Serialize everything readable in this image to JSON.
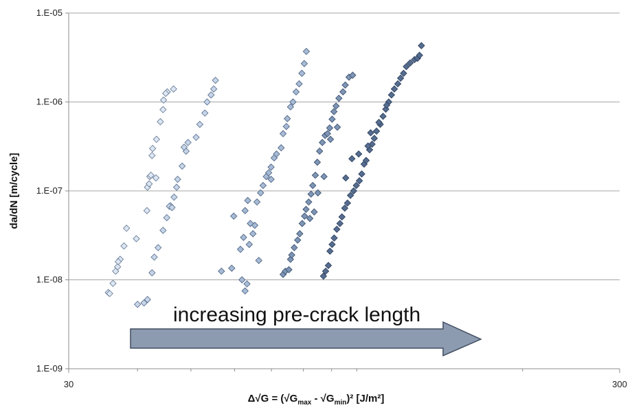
{
  "chart_data": {
    "type": "scatter",
    "xscale": "log",
    "yscale": "log",
    "xlim": [
      30,
      300
    ],
    "ylim": [
      1e-09,
      1e-05
    ],
    "x_tick_labels": [
      "30",
      "300"
    ],
    "y_tick_labels": [
      "1.E-09",
      "1.E-08",
      "1.E-07",
      "1.E-06",
      "1.E-05"
    ],
    "ylabel": "da/dN [m/cycle]",
    "xlabel_parts": [
      "Δ√G = (√G",
      "max",
      " - √G",
      "min",
      ")² [J/m²]"
    ],
    "grid": "horizontal",
    "annotation": "increasing pre-crack length",
    "series": [
      {
        "color": "#dde6f3",
        "stroke": "#6b7f99",
        "marker": "diamond",
        "points": [
          [
            35.4,
            7.2e-09
          ],
          [
            35.6,
            7e-09
          ],
          [
            36.1,
            9.1e-09
          ],
          [
            36.5,
            1.25e-08
          ],
          [
            36.8,
            1.4e-08
          ],
          [
            37.2,
            1.7e-08
          ],
          [
            37.8,
            2.4e-08
          ],
          [
            38.2,
            3.8e-08
          ],
          [
            41.7,
            1.1e-07
          ],
          [
            42.1,
            1.45e-07
          ],
          [
            42.3,
            1.5e-07
          ],
          [
            42.5,
            2.5e-07
          ],
          [
            43.3,
            3.8e-07
          ],
          [
            44.0,
            6e-07
          ],
          [
            44.5,
            8.2e-07
          ],
          [
            45.3,
            1.3e-06
          ],
          [
            46.5,
            1.4e-06
          ],
          [
            41.6,
            6e-08
          ],
          [
            42.0,
            1.2e-07
          ],
          [
            43.2,
            1.4e-07
          ],
          [
            39.8,
            2.9e-08
          ],
          [
            36.9,
            1.6e-08
          ],
          [
            42.6,
            3e-07
          ],
          [
            44.6,
            1.05e-06
          ],
          [
            45.0,
            1.25e-06
          ]
        ]
      },
      {
        "color": "#c8d5e8",
        "stroke": "#5f7593",
        "marker": "diamond",
        "points": [
          [
            40.0,
            5.3e-09
          ],
          [
            41.1,
            5.5e-09
          ],
          [
            41.7,
            6e-09
          ],
          [
            42.5,
            1.2e-08
          ],
          [
            42.9,
            1.8e-08
          ],
          [
            43.6,
            2.3e-08
          ],
          [
            44.5,
            3.6e-08
          ],
          [
            45.2,
            5e-08
          ],
          [
            45.9,
            6.8e-08
          ],
          [
            46.6,
            8.5e-08
          ],
          [
            47.3,
            1.35e-07
          ],
          [
            48.2,
            1.9e-07
          ],
          [
            49.0,
            2.8e-07
          ],
          [
            49.4,
            3.5e-07
          ],
          [
            51.1,
            4e-07
          ],
          [
            51.9,
            5.6e-07
          ],
          [
            53.0,
            7.5e-07
          ],
          [
            53.5,
            1e-06
          ],
          [
            54.4,
            1.2e-06
          ],
          [
            55.0,
            1.4e-06
          ],
          [
            55.4,
            1.75e-06
          ],
          [
            45.7,
            6.7e-08
          ],
          [
            47.1,
            1.1e-07
          ],
          [
            46.2,
            6.5e-08
          ],
          [
            48.6,
            3.1e-07
          ]
        ]
      },
      {
        "color": "#a8bbd6",
        "stroke": "#4f6685",
        "marker": "diamond",
        "points": [
          [
            56.8,
            1.25e-08
          ],
          [
            59.3,
            1.35e-08
          ],
          [
            61.9,
            1e-08
          ],
          [
            62.7,
            7.5e-09
          ],
          [
            63.2,
            9e-09
          ],
          [
            61.5,
            2.2e-08
          ],
          [
            62.3,
            3e-08
          ],
          [
            63.8,
            2.5e-08
          ],
          [
            64.8,
            3.3e-08
          ],
          [
            65.3,
            4.1e-08
          ],
          [
            62.7,
            6e-08
          ],
          [
            63.4,
            7.8e-08
          ],
          [
            65.9,
            7.5e-08
          ],
          [
            66.9,
            9.5e-08
          ],
          [
            67.6,
            1.15e-07
          ],
          [
            68.5,
            1.45e-07
          ],
          [
            69.2,
            1.6e-07
          ],
          [
            69.9,
            1.85e-07
          ],
          [
            70.8,
            2.35e-07
          ],
          [
            71.5,
            2.6e-07
          ],
          [
            72.9,
            3.05e-07
          ],
          [
            73.5,
            4.4e-07
          ],
          [
            74.5,
            5.3e-07
          ],
          [
            74.8,
            6.5e-07
          ],
          [
            75.8,
            8.8e-07
          ],
          [
            76.6,
            1e-06
          ],
          [
            77.6,
            1.3e-06
          ],
          [
            78.6,
            1.6e-06
          ],
          [
            79.5,
            2.1e-06
          ],
          [
            80.3,
            2.7e-06
          ],
          [
            81.0,
            3.7e-06
          ],
          [
            59.8,
            5.2e-08
          ],
          [
            64.1,
            4.3e-08
          ],
          [
            66.4,
            1.65e-08
          ],
          [
            69.9,
            1.35e-07
          ]
        ]
      },
      {
        "color": "#7f95b4",
        "stroke": "#3d5373",
        "marker": "diamond",
        "points": [
          [
            73.5,
            1.15e-08
          ],
          [
            74.2,
            1.25e-08
          ],
          [
            75.3,
            1.3e-08
          ],
          [
            75.8,
            1.7e-08
          ],
          [
            76.2,
            1.9e-08
          ],
          [
            77.0,
            2.3e-08
          ],
          [
            78.1,
            2.8e-08
          ],
          [
            78.8,
            3.3e-08
          ],
          [
            79.6,
            4.3e-08
          ],
          [
            80.4,
            5.2e-08
          ],
          [
            80.9,
            6.2e-08
          ],
          [
            81.8,
            7.5e-08
          ],
          [
            82.6,
            9.2e-08
          ],
          [
            83.2,
            1.15e-07
          ],
          [
            84.1,
            1.5e-07
          ],
          [
            84.8,
            2.1e-07
          ],
          [
            85.6,
            2.8e-07
          ],
          [
            86.6,
            3.5e-07
          ],
          [
            87.6,
            4.2e-07
          ],
          [
            88.5,
            4.4e-07
          ],
          [
            89.3,
            5.1e-07
          ],
          [
            90.2,
            6.4e-07
          ],
          [
            90.9,
            7.8e-07
          ],
          [
            91.7,
            9e-07
          ],
          [
            92.8,
            1.1e-06
          ],
          [
            94.4,
            1.3e-06
          ],
          [
            95.3,
            1.55e-06
          ],
          [
            96.8,
            1.9e-06
          ],
          [
            98.3,
            2e-06
          ],
          [
            85.0,
            9.5e-08
          ],
          [
            83.7,
            5.8e-08
          ],
          [
            82.2,
            4.9e-08
          ],
          [
            87.2,
            1.45e-07
          ],
          [
            89.6,
            3.8e-07
          ],
          [
            92.2,
            5.2e-07
          ]
        ]
      },
      {
        "color": "#566d8f",
        "stroke": "#2e4260",
        "marker": "diamond",
        "points": [
          [
            87.0,
            1.1e-08
          ],
          [
            87.8,
            1.25e-08
          ],
          [
            88.8,
            1.45e-08
          ],
          [
            89.4,
            2.1e-08
          ],
          [
            90.2,
            2.5e-08
          ],
          [
            91.0,
            2.95e-08
          ],
          [
            92.0,
            3.7e-08
          ],
          [
            93.2,
            4.3e-08
          ],
          [
            94.0,
            5.1e-08
          ],
          [
            95.1,
            6.4e-08
          ],
          [
            96.2,
            7.3e-08
          ],
          [
            97.4,
            8.9e-08
          ],
          [
            98.7,
            1e-07
          ],
          [
            99.8,
            1.15e-07
          ],
          [
            101.1,
            1.3e-07
          ],
          [
            102.1,
            1.55e-07
          ],
          [
            103.1,
            2e-07
          ],
          [
            104.0,
            2.2e-07
          ],
          [
            105.5,
            2.9e-07
          ],
          [
            106.6,
            3.35e-07
          ],
          [
            107.6,
            3.9e-07
          ],
          [
            108.6,
            4.7e-07
          ],
          [
            110.3,
            5.6e-07
          ],
          [
            111.6,
            6.9e-07
          ],
          [
            112.9,
            8.3e-07
          ],
          [
            114.3,
            1e-06
          ],
          [
            115.6,
            1.2e-06
          ],
          [
            117.0,
            1.4e-06
          ],
          [
            118.7,
            1.6e-06
          ],
          [
            120.1,
            1.85e-06
          ],
          [
            121.6,
            2.1e-06
          ],
          [
            123.0,
            2.5e-06
          ],
          [
            125.0,
            2.75e-06
          ],
          [
            127.3,
            3e-06
          ],
          [
            128.9,
            3.1e-06
          ],
          [
            130.0,
            3.35e-06
          ],
          [
            131.0,
            4.3e-06
          ],
          [
            95.5,
            1.4e-07
          ],
          [
            98.0,
            2.3e-07
          ],
          [
            100.8,
            2.6e-07
          ],
          [
            104.8,
            3.2e-07
          ],
          [
            109.7,
            5.9e-07
          ],
          [
            113.3,
            9.2e-07
          ],
          [
            106.0,
            4.5e-07
          ]
        ]
      }
    ]
  }
}
